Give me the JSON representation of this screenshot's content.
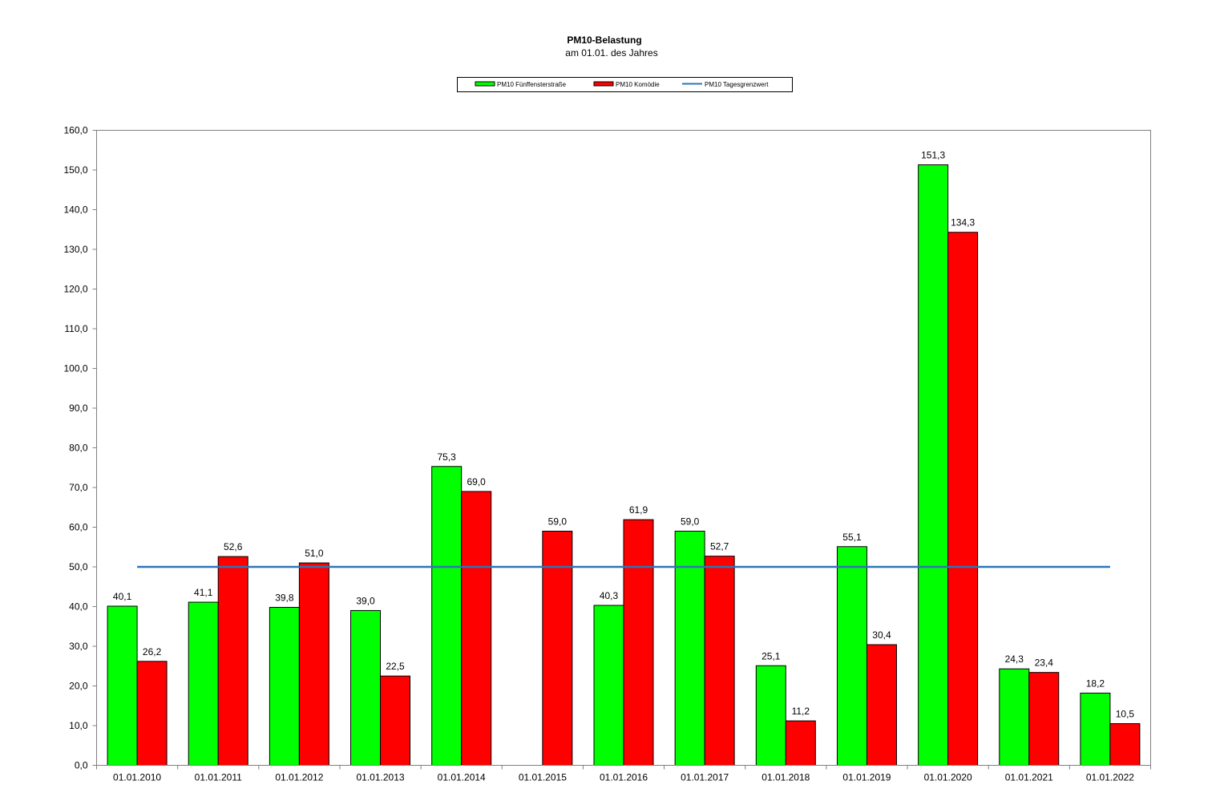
{
  "chart_data": {
    "type": "bar",
    "title": "PM10-Belastung",
    "subtitle": "am 01.01. des Jahres",
    "xlabel": "",
    "ylabel": "",
    "ylim": [
      0,
      160
    ],
    "y_ticks": [
      "0,0",
      "10,0",
      "20,0",
      "30,0",
      "40,0",
      "50,0",
      "60,0",
      "70,0",
      "80,0",
      "90,0",
      "100,0",
      "110,0",
      "120,0",
      "130,0",
      "140,0",
      "150,0",
      "160,0"
    ],
    "grid": false,
    "legend_position": "top-center",
    "categories": [
      "01.01.2010",
      "01.01.2011",
      "01.01.2012",
      "01.01.2013",
      "01.01.2014",
      "01.01.2015",
      "01.01.2016",
      "01.01.2017",
      "01.01.2018",
      "01.01.2019",
      "01.01.2020",
      "01.01.2021",
      "01.01.2022"
    ],
    "series": [
      {
        "name": "PM10 Fünffensterstraße",
        "type": "bar",
        "color": "#00ff00",
        "values": [
          40.1,
          41.1,
          39.8,
          39.0,
          75.3,
          null,
          40.3,
          59.0,
          25.1,
          55.1,
          151.3,
          24.3,
          18.2
        ],
        "labels": [
          "40,1",
          "41,1",
          "39,8",
          "39,0",
          "75,3",
          "",
          "40,3",
          "59,0",
          "25,1",
          "55,1",
          "151,3",
          "24,3",
          "18,2"
        ]
      },
      {
        "name": "PM10 Komödie",
        "type": "bar",
        "color": "#ff0000",
        "values": [
          26.2,
          52.6,
          51.0,
          22.5,
          69.0,
          59.0,
          61.9,
          52.7,
          11.2,
          30.4,
          134.3,
          23.4,
          10.5
        ],
        "labels": [
          "26,2",
          "52,6",
          "51,0",
          "22,5",
          "69,0",
          "59,0",
          "61,9",
          "52,7",
          "11,2",
          "30,4",
          "134,3",
          "23,4",
          "10,5"
        ]
      },
      {
        "name": "PM10 Tagesgrenzwert",
        "type": "line",
        "color": "#2e75b6",
        "value": 50
      }
    ]
  }
}
